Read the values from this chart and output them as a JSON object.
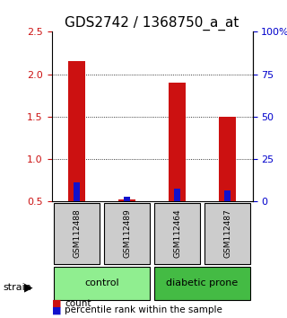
{
  "title": "GDS2742 / 1368750_a_at",
  "samples": [
    "GSM112488",
    "GSM112489",
    "GSM112464",
    "GSM112487"
  ],
  "red_values": [
    2.15,
    0.52,
    1.9,
    1.5
  ],
  "blue_values": [
    0.72,
    0.55,
    0.65,
    0.63
  ],
  "ylim_left": [
    0.5,
    2.5
  ],
  "ylim_right": [
    0,
    100
  ],
  "yticks_left": [
    0.5,
    1.0,
    1.5,
    2.0,
    2.5
  ],
  "yticks_right": [
    0,
    25,
    50,
    75,
    100
  ],
  "ytick_labels_right": [
    "0",
    "25",
    "50",
    "75",
    "100%"
  ],
  "groups": [
    {
      "label": "control",
      "indices": [
        0,
        1
      ],
      "color": "#90EE90"
    },
    {
      "label": "diabetic prone",
      "indices": [
        2,
        3
      ],
      "color": "#44BB44"
    }
  ],
  "bar_width": 0.35,
  "red_color": "#CC1111",
  "blue_color": "#1111CC",
  "background_color": "#ffffff",
  "plot_bg_color": "#ffffff",
  "grid_color": "#000000",
  "title_fontsize": 11,
  "tick_fontsize": 8,
  "label_box_color": "#cccccc",
  "strain_label": "strain",
  "legend_count": "count",
  "legend_percentile": "percentile rank within the sample"
}
